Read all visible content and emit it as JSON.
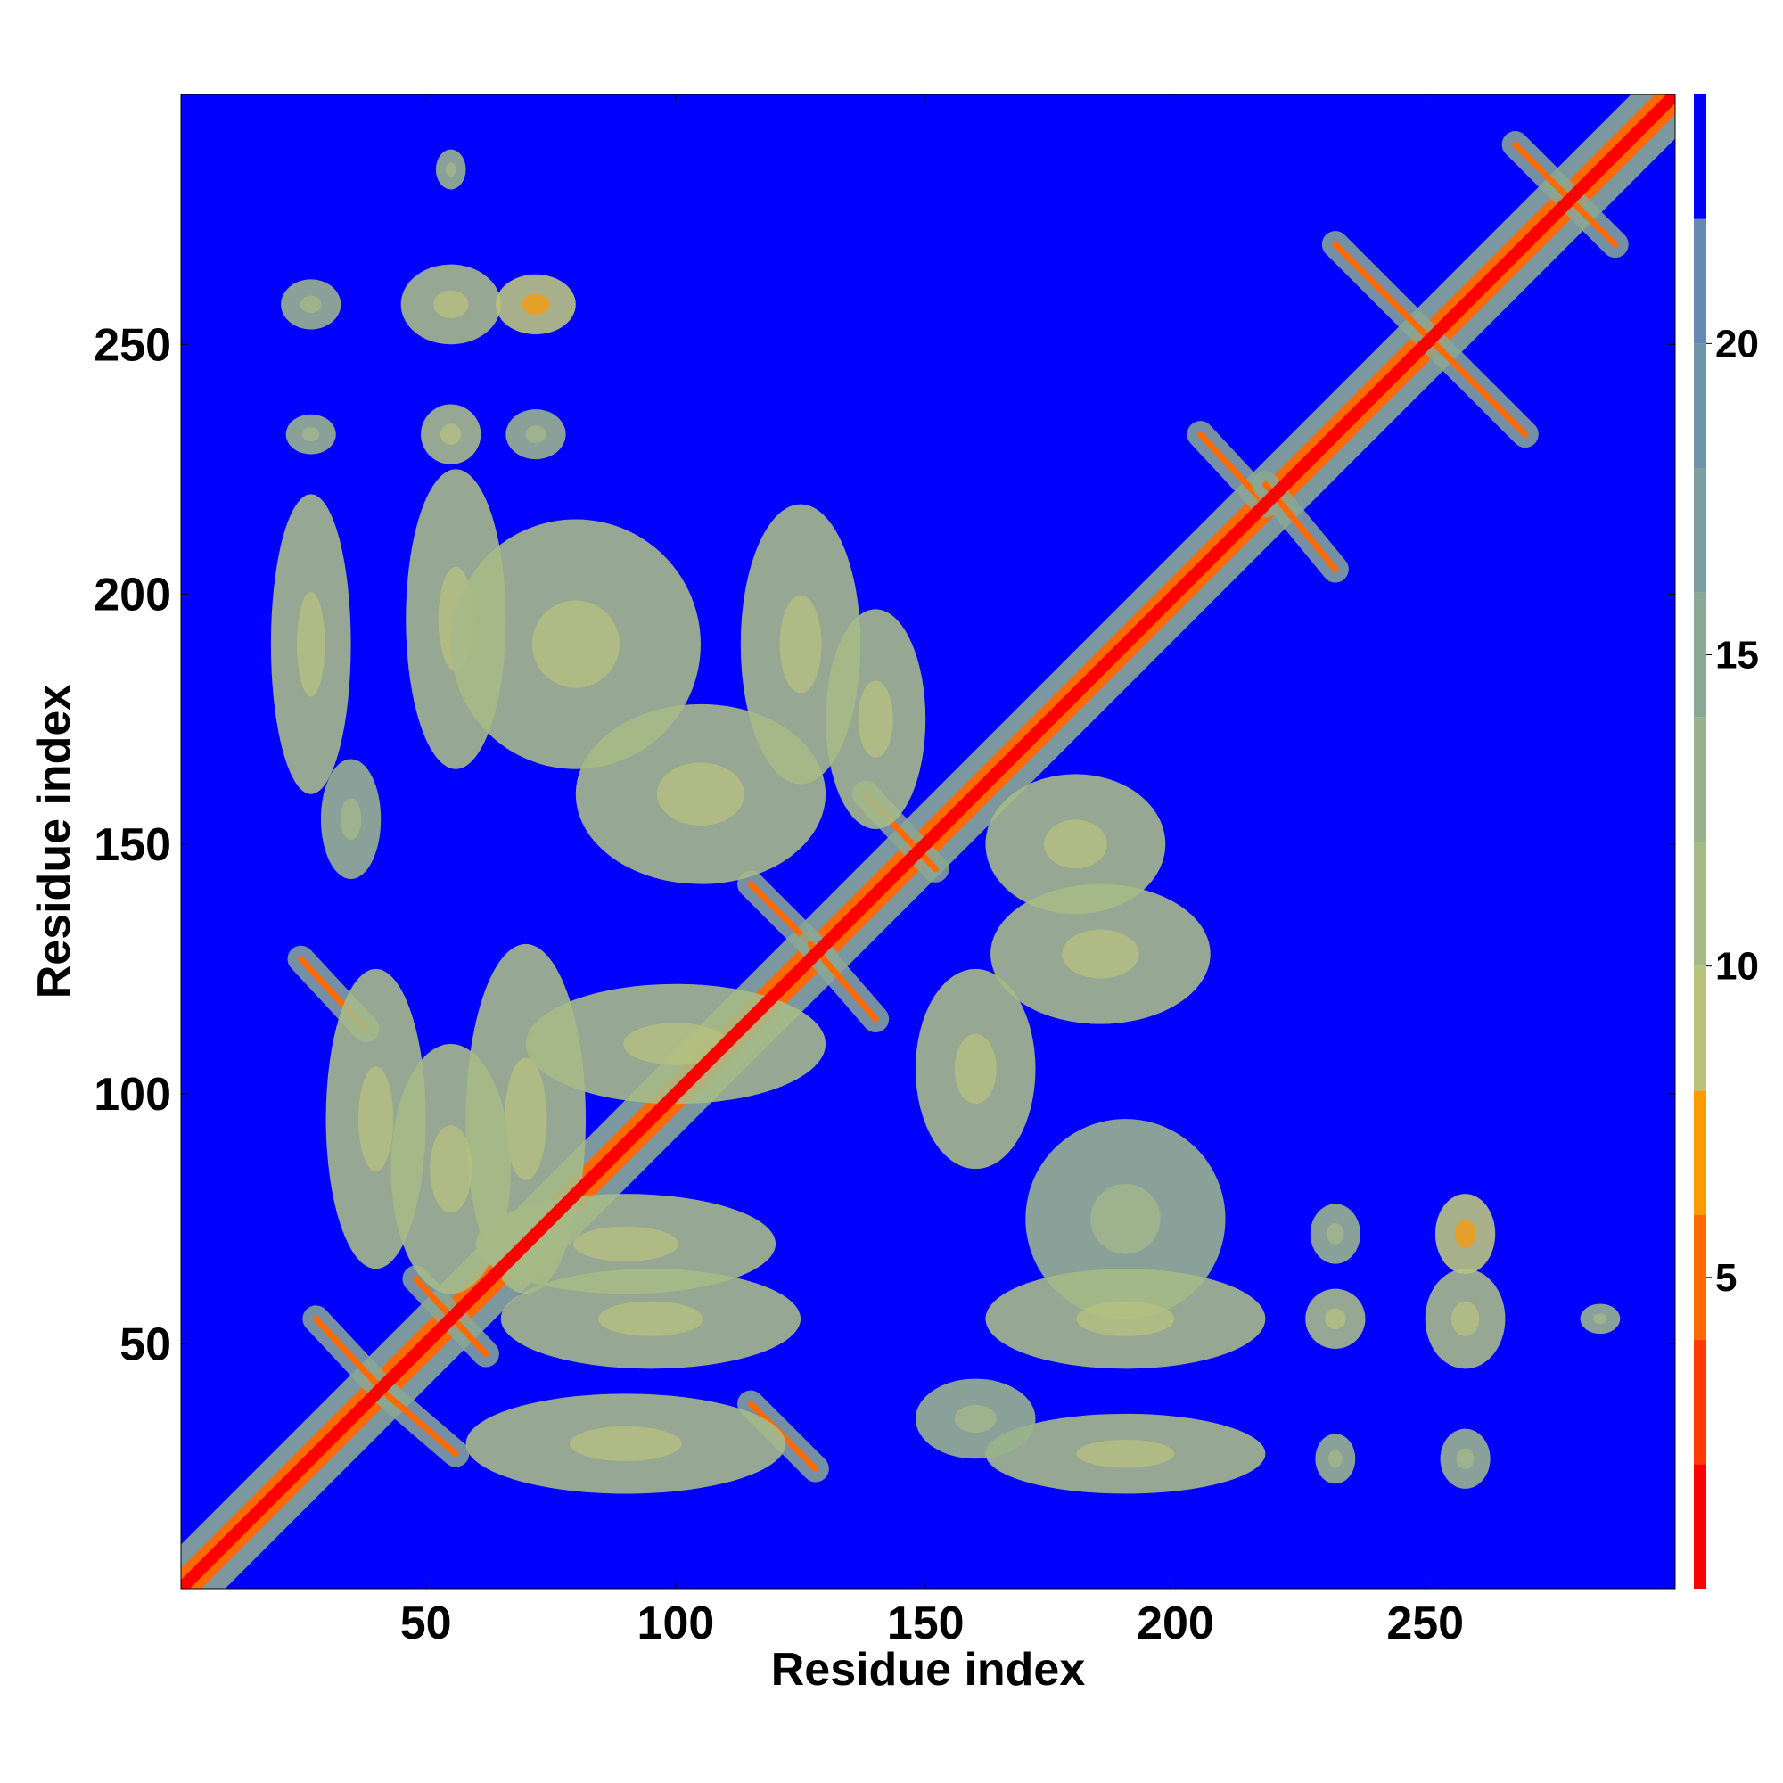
{
  "chart_data": {
    "type": "heatmap",
    "title": "",
    "xlabel": "Residue index",
    "ylabel": "Residue index",
    "xlim": [
      1,
      300
    ],
    "ylim": [
      1,
      300
    ],
    "x_ticks": [
      50,
      100,
      150,
      200,
      250
    ],
    "y_ticks": [
      50,
      100,
      150,
      200,
      250
    ],
    "colorbar": {
      "ticks": [
        5,
        10,
        15,
        20
      ],
      "range": [
        0,
        24
      ],
      "bands": [
        {
          "from": 0,
          "to": 2,
          "color": "#ff0000"
        },
        {
          "from": 2,
          "to": 4,
          "color": "#ff3a00"
        },
        {
          "from": 4,
          "to": 6,
          "color": "#ff6a00"
        },
        {
          "from": 6,
          "to": 8,
          "color": "#ff9a00"
        },
        {
          "from": 8,
          "to": 10,
          "color": "#b9c27e"
        },
        {
          "from": 10,
          "to": 12,
          "color": "#a6ba87"
        },
        {
          "from": 12,
          "to": 14,
          "color": "#98b28e"
        },
        {
          "from": 14,
          "to": 16,
          "color": "#8aa896"
        },
        {
          "from": 16,
          "to": 18,
          "color": "#7c9ea0"
        },
        {
          "from": 18,
          "to": 20,
          "color": "#6f94a9"
        },
        {
          "from": 20,
          "to": 22,
          "color": "#6589b0"
        },
        {
          "from": 22,
          "to": 24,
          "color": "#0000ff"
        }
      ]
    },
    "background_value": 24,
    "diagonal_value": 1,
    "contact_features": [
      {
        "kind": "helix_band",
        "range": [
          1,
          300
        ],
        "value": 4
      },
      {
        "kind": "antidiagonal",
        "from": [
          25,
          127
        ],
        "to": [
          38,
          113
        ],
        "value": 5
      },
      {
        "kind": "antidiagonal",
        "from": [
          28,
          55
        ],
        "to": [
          42,
          40
        ],
        "value": 5
      },
      {
        "kind": "antidiagonal",
        "from": [
          42,
          40
        ],
        "to": [
          56,
          28
        ],
        "value": 5
      },
      {
        "kind": "antidiagonal",
        "from": [
          48,
          63
        ],
        "to": [
          62,
          48
        ],
        "value": 5
      },
      {
        "kind": "antidiagonal",
        "from": [
          115,
          38
        ],
        "to": [
          128,
          25
        ],
        "value": 5
      },
      {
        "kind": "antidiagonal",
        "from": [
          115,
          142
        ],
        "to": [
          130,
          127
        ],
        "value": 5
      },
      {
        "kind": "antidiagonal",
        "from": [
          127,
          130
        ],
        "to": [
          140,
          115
        ],
        "value": 5
      },
      {
        "kind": "antidiagonal",
        "from": [
          138,
          160
        ],
        "to": [
          152,
          145
        ],
        "value": 5
      },
      {
        "kind": "antidiagonal",
        "from": [
          205,
          232
        ],
        "to": [
          218,
          218
        ],
        "value": 5
      },
      {
        "kind": "antidiagonal",
        "from": [
          218,
          222
        ],
        "to": [
          232,
          205
        ],
        "value": 5
      },
      {
        "kind": "antidiagonal",
        "from": [
          232,
          270
        ],
        "to": [
          250,
          252
        ],
        "value": 5
      },
      {
        "kind": "antidiagonal",
        "from": [
          252,
          250
        ],
        "to": [
          270,
          232
        ],
        "value": 5
      },
      {
        "kind": "antidiagonal",
        "from": [
          268,
          290
        ],
        "to": [
          288,
          270
        ],
        "value": 5
      },
      {
        "kind": "blob",
        "center": [
          27,
          190
        ],
        "size": [
          8,
          30
        ],
        "value": 10
      },
      {
        "kind": "blob",
        "center": [
          56,
          195
        ],
        "size": [
          10,
          30
        ],
        "value": 10
      },
      {
        "kind": "blob",
        "center": [
          80,
          190
        ],
        "size": [
          25,
          25
        ],
        "value": 11
      },
      {
        "kind": "blob",
        "center": [
          125,
          190
        ],
        "size": [
          12,
          28
        ],
        "value": 10
      },
      {
        "kind": "blob",
        "center": [
          105,
          160
        ],
        "size": [
          25,
          18
        ],
        "value": 11
      },
      {
        "kind": "blob",
        "center": [
          140,
          175
        ],
        "size": [
          10,
          22
        ],
        "value": 11
      },
      {
        "kind": "blob",
        "center": [
          180,
          150
        ],
        "size": [
          18,
          14
        ],
        "value": 11
      },
      {
        "kind": "blob",
        "center": [
          185,
          128
        ],
        "size": [
          22,
          14
        ],
        "value": 11
      },
      {
        "kind": "blob",
        "center": [
          160,
          105
        ],
        "size": [
          12,
          20
        ],
        "value": 11
      },
      {
        "kind": "blob",
        "center": [
          190,
          75
        ],
        "size": [
          20,
          20
        ],
        "value": 12
      },
      {
        "kind": "blob",
        "center": [
          190,
          55
        ],
        "size": [
          28,
          10
        ],
        "value": 11
      },
      {
        "kind": "blob",
        "center": [
          190,
          28
        ],
        "size": [
          28,
          8
        ],
        "value": 11
      },
      {
        "kind": "blob",
        "center": [
          160,
          35
        ],
        "size": [
          12,
          8
        ],
        "value": 13
      },
      {
        "kind": "blob",
        "center": [
          90,
          30
        ],
        "size": [
          32,
          10
        ],
        "value": 11
      },
      {
        "kind": "blob",
        "center": [
          95,
          55
        ],
        "size": [
          30,
          10
        ],
        "value": 11
      },
      {
        "kind": "blob",
        "center": [
          90,
          70
        ],
        "size": [
          30,
          10
        ],
        "value": 11
      },
      {
        "kind": "blob",
        "center": [
          40,
          95
        ],
        "size": [
          10,
          30
        ],
        "value": 11
      },
      {
        "kind": "blob",
        "center": [
          70,
          95
        ],
        "size": [
          12,
          35
        ],
        "value": 11
      },
      {
        "kind": "blob",
        "center": [
          55,
          85
        ],
        "size": [
          12,
          25
        ],
        "value": 11
      },
      {
        "kind": "blob",
        "center": [
          100,
          110
        ],
        "size": [
          30,
          12
        ],
        "value": 11
      },
      {
        "kind": "blob",
        "center": [
          35,
          155
        ],
        "size": [
          6,
          12
        ],
        "value": 13
      },
      {
        "kind": "blob",
        "center": [
          27,
          232
        ],
        "size": [
          5,
          4
        ],
        "value": 12
      },
      {
        "kind": "blob",
        "center": [
          55,
          232
        ],
        "size": [
          6,
          6
        ],
        "value": 10
      },
      {
        "kind": "blob",
        "center": [
          72,
          232
        ],
        "size": [
          6,
          5
        ],
        "value": 12
      },
      {
        "kind": "blob",
        "center": [
          27,
          258
        ],
        "size": [
          6,
          5
        ],
        "value": 12
      },
      {
        "kind": "blob",
        "center": [
          55,
          258
        ],
        "size": [
          10,
          8
        ],
        "value": 10
      },
      {
        "kind": "blob",
        "center": [
          72,
          258
        ],
        "size": [
          8,
          6
        ],
        "value": 9
      },
      {
        "kind": "blob",
        "center": [
          232,
          27
        ],
        "size": [
          4,
          5
        ],
        "value": 12
      },
      {
        "kind": "blob",
        "center": [
          232,
          55
        ],
        "size": [
          6,
          6
        ],
        "value": 10
      },
      {
        "kind": "blob",
        "center": [
          232,
          72
        ],
        "size": [
          5,
          6
        ],
        "value": 12
      },
      {
        "kind": "blob",
        "center": [
          258,
          27
        ],
        "size": [
          5,
          6
        ],
        "value": 12
      },
      {
        "kind": "blob",
        "center": [
          258,
          55
        ],
        "size": [
          8,
          10
        ],
        "value": 10
      },
      {
        "kind": "blob",
        "center": [
          258,
          72
        ],
        "size": [
          6,
          8
        ],
        "value": 9
      },
      {
        "kind": "blob",
        "center": [
          285,
          55
        ],
        "size": [
          4,
          3
        ],
        "value": 12
      },
      {
        "kind": "blob",
        "center": [
          55,
          285
        ],
        "size": [
          3,
          4
        ],
        "value": 12
      }
    ]
  }
}
